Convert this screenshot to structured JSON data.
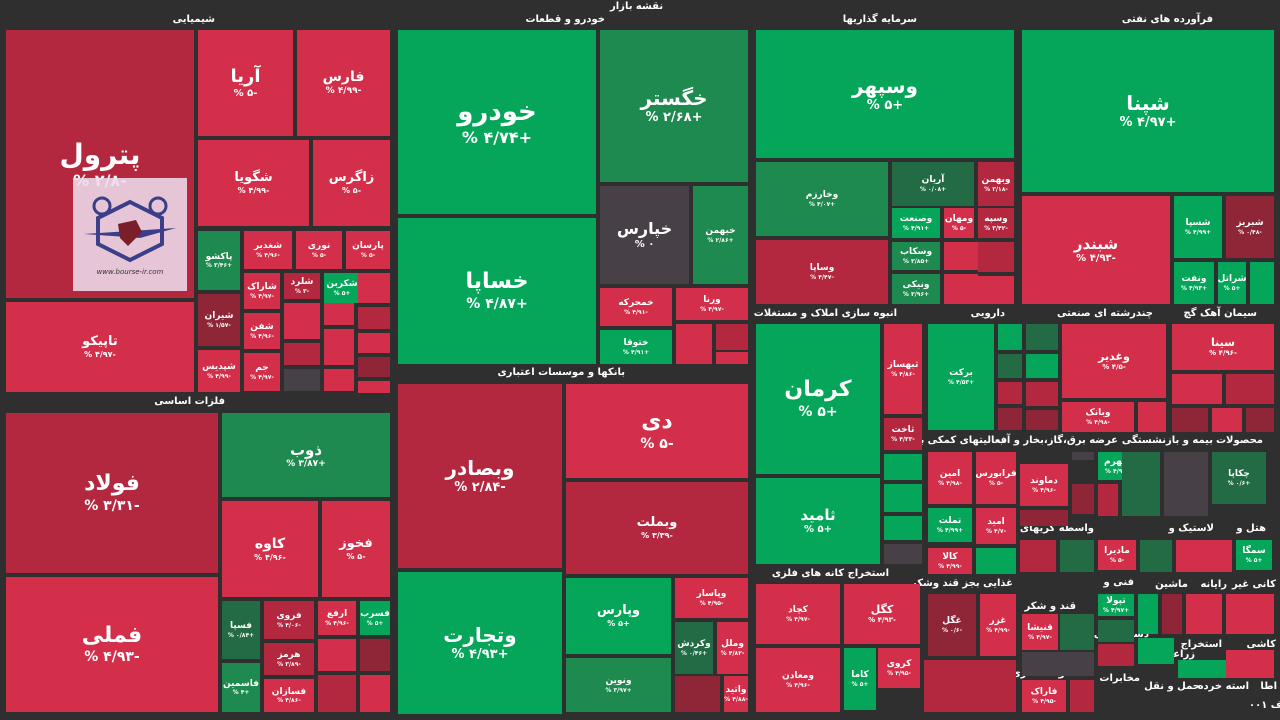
{
  "page_title": "نقشه بازار",
  "colors": {
    "bright_green": "#05a65a",
    "mid_green": "#1e8a50",
    "dark_green": "#226b45",
    "bright_red": "#d32f4a",
    "mid_red": "#b3273f",
    "dark_red": "#8e2638",
    "neutral": "#474046",
    "background": "#2f2f2f"
  },
  "watermark": {
    "text": "www.bourse-ir.com"
  },
  "corner_label": "۰۰۱ ف",
  "chart_data": {
    "type": "treemap",
    "title": "نقشه بازار",
    "value_unit": "% change",
    "sectors": [
      {
        "name": "شیمیایی",
        "symbols": [
          {
            "name": "پترول",
            "pct": "-۲/۸ %",
            "value": -2.8
          },
          {
            "name": "آریا",
            "pct": "-۵ %",
            "value": -5
          },
          {
            "name": "فارس",
            "pct": "-۴/۹۹ %",
            "value": -4.99
          },
          {
            "name": "شگویا",
            "pct": "-۴/۹۹ %",
            "value": -4.99
          },
          {
            "name": "زاگرس",
            "pct": "-۵ %",
            "value": -5
          },
          {
            "name": "تاپیکو",
            "pct": "-۴/۹۷ %",
            "value": -4.97
          },
          {
            "name": "پاکشو",
            "pct": "+۳/۴۶ %",
            "value": 3.46
          },
          {
            "name": "شغدیر",
            "pct": "-۴/۹۶ %",
            "value": -4.96
          },
          {
            "name": "نوری",
            "pct": "-۵ %",
            "value": -5
          },
          {
            "name": "پارسان",
            "pct": "-۵ %",
            "value": -5
          },
          {
            "name": "شیران",
            "pct": "-۱/۵۷ %",
            "value": -1.57
          },
          {
            "name": "شاراک",
            "pct": "-۴/۹۷ %",
            "value": -4.97
          },
          {
            "name": "شلرد",
            "pct": "-۳ %",
            "value": -3
          },
          {
            "name": "شکربن",
            "pct": "+۵ %",
            "value": 5
          },
          {
            "name": "شفن",
            "pct": "-۴/۹۶ %",
            "value": -4.96
          },
          {
            "name": "شپدیس",
            "pct": "-۴/۹۹ %",
            "value": -4.99
          },
          {
            "name": "جم",
            "pct": "-۴/۹۷ %",
            "value": -4.97
          }
        ]
      },
      {
        "name": "فلزات اساسی",
        "symbols": [
          {
            "name": "فولاد",
            "pct": "-۳/۳۱ %",
            "value": -3.31
          },
          {
            "name": "فملی",
            "pct": "-۴/۹۳ %",
            "value": -4.93
          },
          {
            "name": "ذوب",
            "pct": "+۳/۸۷ %",
            "value": 3.87
          },
          {
            "name": "کاوه",
            "pct": "-۴/۹۶ %",
            "value": -4.96
          },
          {
            "name": "فخوز",
            "pct": "-۵ %",
            "value": -5
          },
          {
            "name": "فسپا",
            "pct": "+۰/۸۴ %",
            "value": 0.84
          },
          {
            "name": "فروی",
            "pct": "-۴/۰۶ %",
            "value": -4.06
          },
          {
            "name": "ارفع",
            "pct": "-۴/۹۶ %",
            "value": -4.96
          },
          {
            "name": "فسرب",
            "pct": "+۵ %",
            "value": 5
          },
          {
            "name": "هرمز",
            "pct": "-۳/۸۹ %",
            "value": -3.89
          },
          {
            "name": "فاسمین",
            "pct": "+۴ %",
            "value": 4
          },
          {
            "name": "فسازان",
            "pct": "-۴/۸۶ %",
            "value": -4.86
          }
        ]
      },
      {
        "name": "خودرو و قطعات",
        "symbols": [
          {
            "name": "خودرو",
            "pct": "+۴/۷۴ %",
            "value": 4.74
          },
          {
            "name": "خگستر",
            "pct": "+۲/۶۸ %",
            "value": 2.68
          },
          {
            "name": "خساپا",
            "pct": "+۴/۸۷ %",
            "value": 4.87
          },
          {
            "name": "خپارس",
            "pct": "۰ %",
            "value": 0
          },
          {
            "name": "خبهمن",
            "pct": "+۲/۸۶ %",
            "value": 2.86
          },
          {
            "name": "خمحرکه",
            "pct": "-۴/۹۱ %",
            "value": -4.91
          },
          {
            "name": "ورنا",
            "pct": "-۴/۹۷ %",
            "value": -4.97
          },
          {
            "name": "ختوقا",
            "pct": "+۴/۹۱ %",
            "value": 4.91
          }
        ]
      },
      {
        "name": "بانکها و موسسات اعتباری",
        "symbols": [
          {
            "name": "وبصادر",
            "pct": "-۲/۸۴ %",
            "value": -2.84
          },
          {
            "name": "دی",
            "pct": "-۵ %",
            "value": -5
          },
          {
            "name": "وبملت",
            "pct": "-۳/۳۹ %",
            "value": -3.39
          },
          {
            "name": "وتجارت",
            "pct": "+۴/۹۳ %",
            "value": 4.93
          },
          {
            "name": "وپارس",
            "pct": "+۵ %",
            "value": 5
          },
          {
            "name": "وپاسار",
            "pct": "-۴/۹۵ %",
            "value": -4.95
          },
          {
            "name": "وکردش",
            "pct": "+۰/۴۶ %",
            "value": 0.46
          },
          {
            "name": "وملل",
            "pct": "-۴/۸۲ %",
            "value": -4.82
          },
          {
            "name": "ونوین",
            "pct": "+۳/۹۷ %",
            "value": 3.97
          },
          {
            "name": "واتید",
            "pct": "-۴/۸۸ %",
            "value": -4.88
          }
        ]
      },
      {
        "name": "سرمایه گذاریها",
        "symbols": [
          {
            "name": "وسپهر",
            "pct": "+۵ %",
            "value": 5
          },
          {
            "name": "وخارزم",
            "pct": "+۴/۰۷ %",
            "value": 4.07
          },
          {
            "name": "آریان",
            "pct": "+۰/۰۸ %",
            "value": 0.08
          },
          {
            "name": "وبهمن",
            "pct": "-۳/۱۸ %",
            "value": -3.18
          },
          {
            "name": "وصنعت",
            "pct": "+۴/۹۱ %",
            "value": 4.91
          },
          {
            "name": "ومهان",
            "pct": "-۵ %",
            "value": -5
          },
          {
            "name": "وسپه",
            "pct": "-۳/۴۲ %",
            "value": -3.42
          },
          {
            "name": "وسکاب",
            "pct": "+۳/۸۵ %",
            "value": 3.85
          },
          {
            "name": "وساپا",
            "pct": "-۴/۴۷ %",
            "value": -4.47
          },
          {
            "name": "ونیکی",
            "pct": "+۳/۹۶ %",
            "value": 3.96
          }
        ]
      },
      {
        "name": "فرآورده های نفتی",
        "symbols": [
          {
            "name": "شپنا",
            "pct": "+۴/۹۷ %",
            "value": 4.97
          },
          {
            "name": "شبندر",
            "pct": "-۴/۹۳ %",
            "value": -4.93
          },
          {
            "name": "شسپا",
            "pct": "+۴/۹۹ %",
            "value": 4.99
          },
          {
            "name": "شبریز",
            "pct": "-۰/۴۸ %",
            "value": -0.48
          },
          {
            "name": "ونفت",
            "pct": "+۴/۹۳ %",
            "value": 4.93
          },
          {
            "name": "شراتل",
            "pct": "+۵ %",
            "value": 5
          }
        ]
      },
      {
        "name": "انبوه سازی املاک و مستغلات",
        "symbols": [
          {
            "name": "کرمان",
            "pct": "+۵ %",
            "value": 5
          },
          {
            "name": "ثامید",
            "pct": "+۵ %",
            "value": 5
          },
          {
            "name": "ثبهساز",
            "pct": "-۴/۸۶ %",
            "value": -4.86
          },
          {
            "name": "ثاخت",
            "pct": "-۴/۳۳ %",
            "value": -4.33
          }
        ]
      },
      {
        "name": "دارویی",
        "symbols": [
          {
            "name": "برکت",
            "pct": "+۴/۵۳ %",
            "value": 4.53
          }
        ]
      },
      {
        "name": "چندرشته ای صنعتی",
        "symbols": [
          {
            "name": "وغدیر",
            "pct": "-۴/۵ %",
            "value": -4.5
          },
          {
            "name": "وبانک",
            "pct": "-۴/۹۸ %",
            "value": -4.98
          }
        ]
      },
      {
        "name": "سیمان آهک گچ",
        "symbols": [
          {
            "name": "سینا",
            "pct": "-۴/۹۶ %",
            "value": -4.96
          }
        ]
      },
      {
        "name": "استخراج کانه های فلزی",
        "symbols": [
          {
            "name": "کچاد",
            "pct": "-۴/۹۷ %",
            "value": -4.97
          },
          {
            "name": "کگل",
            "pct": "-۴/۹۳ %",
            "value": -4.93
          },
          {
            "name": "ومعادن",
            "pct": "-۴/۹۶ %",
            "value": -4.96
          },
          {
            "name": "کاما",
            "pct": "+۵ %",
            "value": 5
          },
          {
            "name": "کروی",
            "pct": "-۴/۹۵ %",
            "value": -4.95
          }
        ]
      },
      {
        "name": "فعالیتهای کمکی به",
        "symbols": [
          {
            "name": "امین",
            "pct": "-۴/۹۸ %",
            "value": -4.98
          },
          {
            "name": "فرابورس",
            "pct": "-۵ %",
            "value": -5
          },
          {
            "name": "تملت",
            "pct": "+۴/۹۹ %",
            "value": 4.99
          },
          {
            "name": "امید",
            "pct": "-۴/۷ %",
            "value": -4.7
          },
          {
            "name": "کالا",
            "pct": "-۴/۹۹ %",
            "value": -4.99
          }
        ]
      },
      {
        "name": "عرضه برق،گاز،بخار و آب",
        "symbols": [
          {
            "name": "بجهرم",
            "pct": "+۴/۹۴ %",
            "value": 4.94
          },
          {
            "name": "دماوند",
            "pct": "-۴/۹۶ %",
            "value": -4.96
          }
        ]
      },
      {
        "name": "بیمه و بازنشستگی",
        "symbols": []
      },
      {
        "name": "محصولات",
        "symbols": [
          {
            "name": "چکاپا",
            "pct": "+۰/۶ %",
            "value": 0.6
          }
        ]
      },
      {
        "name": "غذایی بجز قند وشکر",
        "symbols": [
          {
            "name": "غگل",
            "pct": "-۰/۶ %",
            "value": -0.6
          },
          {
            "name": "غزر",
            "pct": "-۴/۹۹ %",
            "value": -4.99
          }
        ]
      },
      {
        "name": "واسطه گریهای",
        "symbols": [
          {
            "name": "مادیرا",
            "pct": "-۵ %",
            "value": -5
          }
        ]
      },
      {
        "name": "لاستیک و",
        "symbols": []
      },
      {
        "name": "هتل و",
        "symbols": [
          {
            "name": "سمگا",
            "pct": "+۵ %",
            "value": 5
          }
        ]
      },
      {
        "name": "قند و شکر",
        "symbols": [
          {
            "name": "قنیشا",
            "pct": "-۴/۹۷ %",
            "value": -4.97
          }
        ]
      },
      {
        "name": "فنی و",
        "symbols": [
          {
            "name": "تپولا",
            "pct": "+۴/۹۷ %",
            "value": 4.97
          }
        ]
      },
      {
        "name": "دستگاههای",
        "symbols": []
      },
      {
        "name": "محصولات فلزی",
        "symbols": [
          {
            "name": "فاراک",
            "pct": "-۴/۹۵ %",
            "value": -4.95
          }
        ]
      },
      {
        "name": "مخابرات",
        "symbols": []
      },
      {
        "name": "ماشین",
        "symbols": []
      },
      {
        "name": "رایانه",
        "symbols": []
      },
      {
        "name": "کانی غیر",
        "symbols": []
      },
      {
        "name": "کاشی",
        "symbols": []
      },
      {
        "name": "استخراج",
        "symbols": []
      },
      {
        "name": "زراعت و",
        "symbols": []
      },
      {
        "name": "حمل و نقل",
        "symbols": []
      },
      {
        "name": "استه خرده",
        "symbols": []
      },
      {
        "name": "اطا",
        "symbols": []
      }
    ]
  }
}
